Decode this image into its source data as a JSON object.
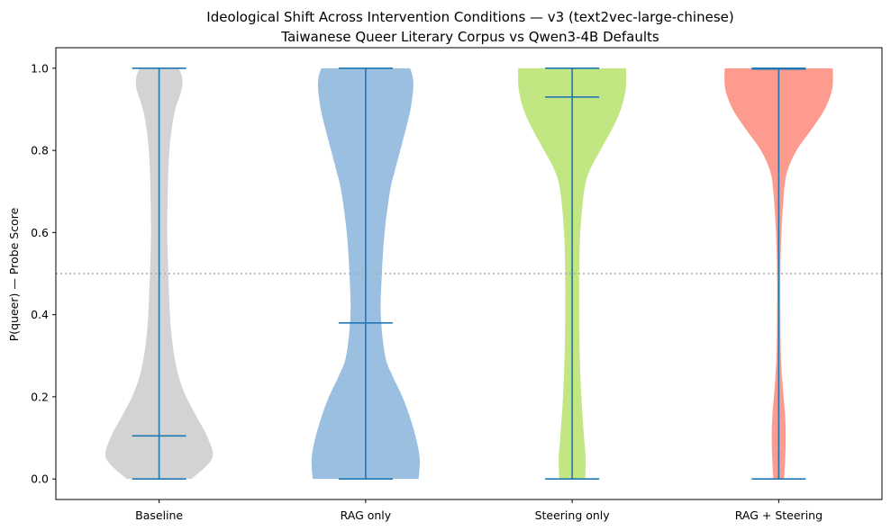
{
  "chart_data": {
    "type": "violin",
    "title": "Ideological Shift Across Intervention Conditions — v3 (text2vec-large-chinese)",
    "subtitle": "Taiwanese Queer Literary Corpus vs Qwen3-4B Defaults",
    "ylabel": "P(queer) — Probe Score",
    "xlabel": "",
    "ylim": [
      -0.05,
      1.05
    ],
    "yticks": [
      "0.0",
      "0.2",
      "0.4",
      "0.6",
      "0.8",
      "1.0"
    ],
    "reference_line": 0.5,
    "grid": false,
    "series": [
      {
        "category": "Baseline",
        "color": "#d3d3d3",
        "min": 0.0,
        "max": 1.0,
        "median": 0.105,
        "density": [
          [
            0.0,
            0.6
          ],
          [
            0.05,
            0.98
          ],
          [
            0.1,
            0.9
          ],
          [
            0.15,
            0.7
          ],
          [
            0.2,
            0.5
          ],
          [
            0.25,
            0.36
          ],
          [
            0.3,
            0.28
          ],
          [
            0.35,
            0.23
          ],
          [
            0.4,
            0.2
          ],
          [
            0.5,
            0.17
          ],
          [
            0.6,
            0.15
          ],
          [
            0.7,
            0.16
          ],
          [
            0.75,
            0.17
          ],
          [
            0.8,
            0.19
          ],
          [
            0.85,
            0.23
          ],
          [
            0.9,
            0.3
          ],
          [
            0.95,
            0.42
          ],
          [
            0.98,
            0.42
          ],
          [
            1.0,
            0.36
          ]
        ]
      },
      {
        "category": "RAG only",
        "color": "#9bbfe0",
        "min": 0.0,
        "max": 1.0,
        "median": 0.38,
        "density": [
          [
            0.0,
            0.98
          ],
          [
            0.05,
            1.0
          ],
          [
            0.1,
            0.93
          ],
          [
            0.15,
            0.82
          ],
          [
            0.2,
            0.68
          ],
          [
            0.25,
            0.5
          ],
          [
            0.3,
            0.36
          ],
          [
            0.4,
            0.28
          ],
          [
            0.5,
            0.3
          ],
          [
            0.6,
            0.35
          ],
          [
            0.7,
            0.45
          ],
          [
            0.75,
            0.54
          ],
          [
            0.8,
            0.64
          ],
          [
            0.85,
            0.74
          ],
          [
            0.9,
            0.83
          ],
          [
            0.95,
            0.88
          ],
          [
            0.98,
            0.87
          ],
          [
            1.0,
            0.82
          ]
        ]
      },
      {
        "category": "Steering only",
        "color": "#c2e682",
        "min": 0.0,
        "max": 1.0,
        "median": 0.93,
        "density": [
          [
            0.0,
            0.24
          ],
          [
            0.05,
            0.25
          ],
          [
            0.1,
            0.22
          ],
          [
            0.2,
            0.17
          ],
          [
            0.3,
            0.14
          ],
          [
            0.4,
            0.13
          ],
          [
            0.5,
            0.13
          ],
          [
            0.6,
            0.15
          ],
          [
            0.7,
            0.22
          ],
          [
            0.75,
            0.32
          ],
          [
            0.8,
            0.52
          ],
          [
            0.85,
            0.73
          ],
          [
            0.9,
            0.9
          ],
          [
            0.95,
            0.99
          ],
          [
            1.0,
            1.0
          ]
        ]
      },
      {
        "category": "RAG + Steering",
        "color": "#fd9c8e",
        "min": 0.0,
        "max": 1.0,
        "median": 0.998,
        "density": [
          [
            0.0,
            0.1
          ],
          [
            0.05,
            0.12
          ],
          [
            0.1,
            0.13
          ],
          [
            0.15,
            0.12
          ],
          [
            0.2,
            0.09
          ],
          [
            0.25,
            0.06
          ],
          [
            0.3,
            0.04
          ],
          [
            0.4,
            0.03
          ],
          [
            0.5,
            0.03
          ],
          [
            0.6,
            0.05
          ],
          [
            0.7,
            0.1
          ],
          [
            0.75,
            0.16
          ],
          [
            0.8,
            0.33
          ],
          [
            0.85,
            0.6
          ],
          [
            0.9,
            0.85
          ],
          [
            0.95,
            0.99
          ],
          [
            1.0,
            1.0
          ]
        ]
      }
    ]
  }
}
